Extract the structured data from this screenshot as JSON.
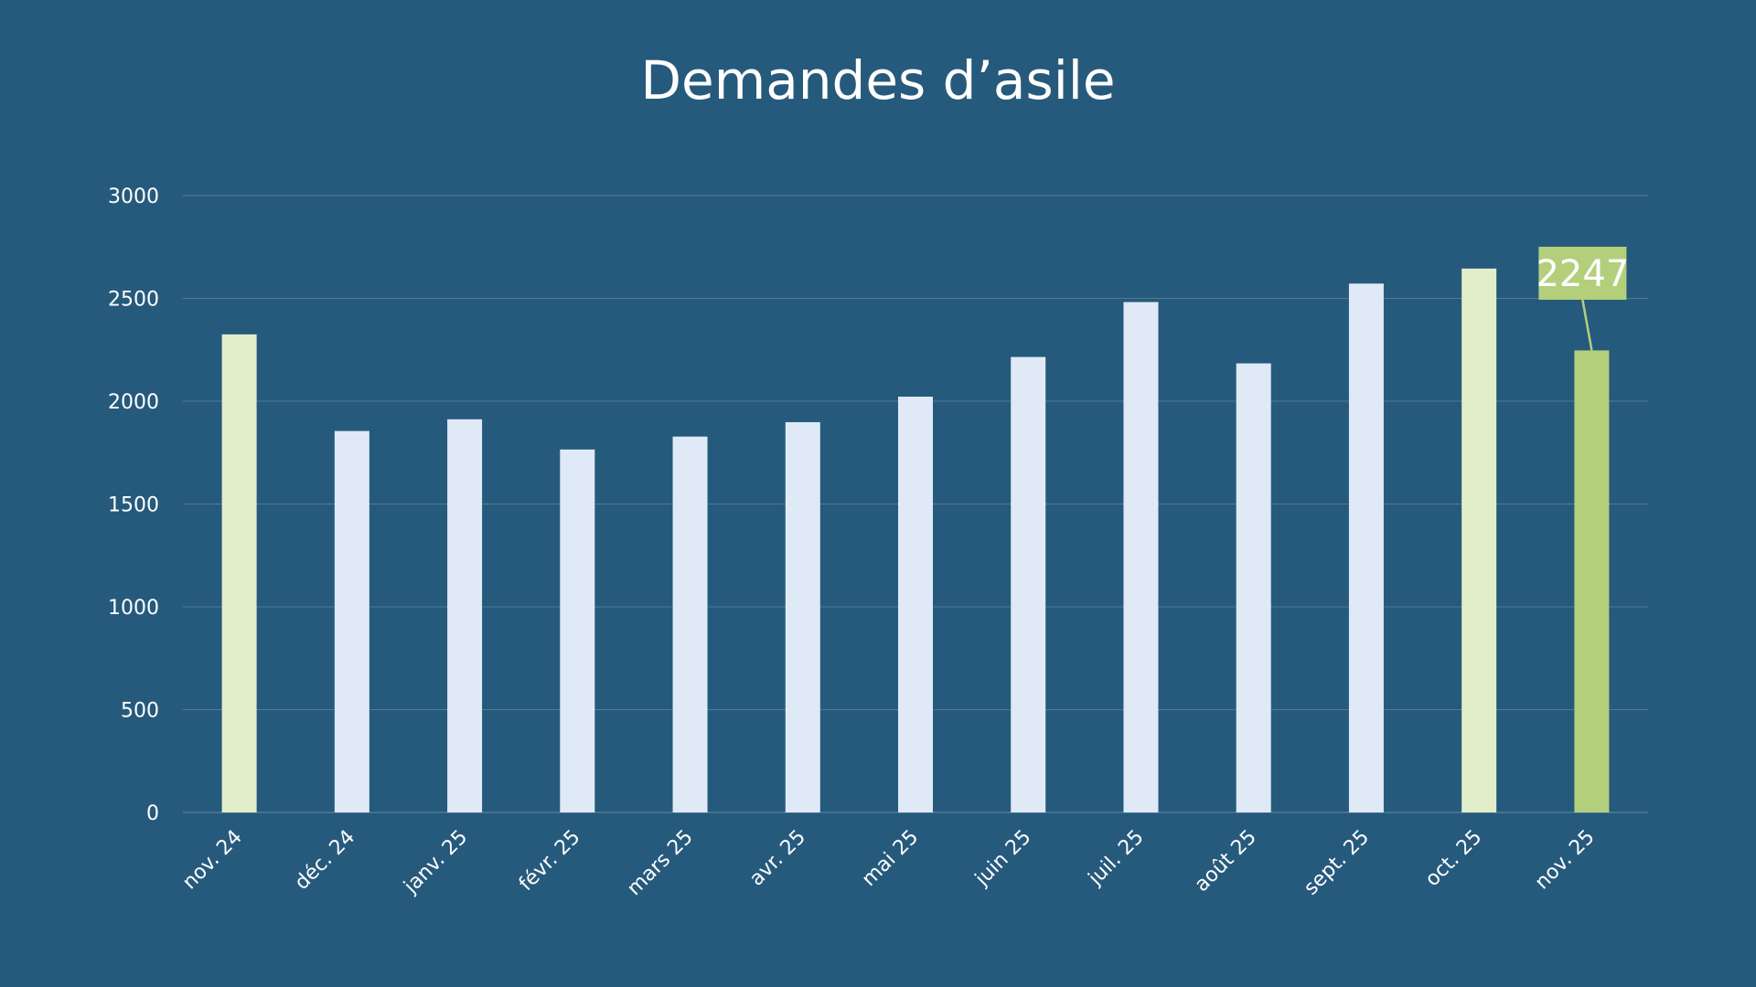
{
  "chart_data": {
    "type": "bar",
    "title": "Demandes d’asile",
    "xlabel": "",
    "ylabel": "",
    "ylim": [
      0,
      3000
    ],
    "yticks": [
      0,
      500,
      1000,
      1500,
      2000,
      2500,
      3000
    ],
    "grid": true,
    "legend": "none",
    "categories": [
      "nov. 24",
      "déc. 24",
      "janv. 25",
      "févr. 25",
      "mars 25",
      "avr. 25",
      "mai 25",
      "juin 25",
      "juil. 25",
      "août 25",
      "sept. 25",
      "oct. 25",
      "nov. 25"
    ],
    "values": [
      2325,
      1855,
      1912,
      1765,
      1828,
      1898,
      2022,
      2215,
      2482,
      2184,
      2572,
      2645,
      2247
    ],
    "bar_colors": [
      "#e2edc9",
      "#dfeaf6",
      "#dfeaf6",
      "#dfeaf6",
      "#dfeaf6",
      "#dfeaf6",
      "#dfeaf6",
      "#dfeaf6",
      "#dfeaf6",
      "#dfeaf6",
      "#dfeaf6",
      "#e2edc9",
      "#b3cf7c"
    ],
    "annotation": {
      "category": "nov. 25",
      "label": "2247",
      "color": "#b3cf7c"
    },
    "colors": {
      "background": "#265a7c",
      "text": "#ffffff",
      "grid": "#4f7b98"
    }
  }
}
